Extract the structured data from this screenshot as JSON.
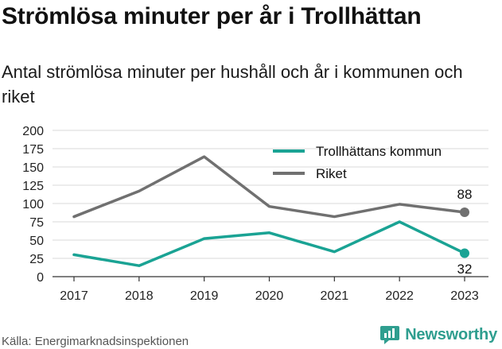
{
  "title": "Strömlösa minuter per år i Trollhättan",
  "subtitle": "Antal strömlösa minuter per hushåll och år i kommunen och riket",
  "source": "Källa: Energimarknadsinspektionen",
  "brand": {
    "name": "Newsworthy",
    "icon": "newsworthy-logo-icon"
  },
  "colors": {
    "kommun": "#1aa394",
    "riket": "#707070",
    "grid": "#d9d9d9",
    "brand": "#2f9e8f"
  },
  "chart_data": {
    "type": "line",
    "categories": [
      "2017",
      "2018",
      "2019",
      "2020",
      "2021",
      "2022",
      "2023"
    ],
    "series": [
      {
        "name": "Trollhättans kommun",
        "values": [
          30,
          15,
          52,
          60,
          34,
          75,
          32
        ]
      },
      {
        "name": "Riket",
        "values": [
          82,
          117,
          164,
          96,
          82,
          99,
          88
        ]
      }
    ],
    "y_ticks": [
      "0",
      "25",
      "50",
      "75",
      "100",
      "125",
      "150",
      "175",
      "200"
    ],
    "ylim": [
      0,
      200
    ],
    "grid": true,
    "legend": "top-right",
    "end_labels": {
      "kommun": "32",
      "riket": "88"
    }
  }
}
